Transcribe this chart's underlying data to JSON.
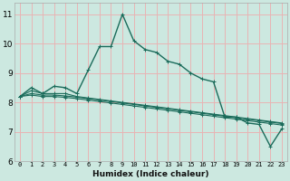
{
  "xlabel": "Humidex (Indice chaleur)",
  "bg_color": "#cce8e0",
  "grid_color": "#e8b4b4",
  "line_color": "#1a6b5a",
  "xlim": [
    -0.5,
    23.5
  ],
  "ylim": [
    6,
    11.4
  ],
  "yticks": [
    6,
    7,
    8,
    9,
    10,
    11
  ],
  "xticks": [
    0,
    1,
    2,
    3,
    4,
    5,
    6,
    7,
    8,
    9,
    10,
    11,
    12,
    13,
    14,
    15,
    16,
    17,
    18,
    19,
    20,
    21,
    22,
    23
  ],
  "series": [
    [
      8.2,
      8.5,
      8.3,
      8.55,
      8.5,
      8.3,
      9.1,
      9.9,
      9.9,
      11.0,
      10.1,
      9.8,
      9.7,
      9.4,
      9.3,
      9.0,
      8.8,
      8.7,
      7.5,
      7.5,
      7.3,
      7.25,
      6.5,
      7.1
    ],
    [
      8.2,
      8.4,
      8.3,
      8.3,
      8.3,
      8.2,
      8.15,
      8.1,
      8.05,
      8.0,
      7.95,
      7.9,
      7.85,
      7.8,
      7.75,
      7.7,
      7.65,
      7.6,
      7.55,
      7.5,
      7.45,
      7.4,
      7.35,
      7.3
    ],
    [
      8.2,
      8.3,
      8.25,
      8.25,
      8.22,
      8.18,
      8.13,
      8.08,
      8.03,
      7.98,
      7.93,
      7.88,
      7.83,
      7.78,
      7.73,
      7.68,
      7.63,
      7.58,
      7.53,
      7.48,
      7.43,
      7.38,
      7.33,
      7.28
    ],
    [
      8.2,
      8.25,
      8.2,
      8.2,
      8.17,
      8.13,
      8.08,
      8.03,
      7.98,
      7.93,
      7.88,
      7.83,
      7.78,
      7.73,
      7.68,
      7.63,
      7.58,
      7.53,
      7.48,
      7.43,
      7.38,
      7.33,
      7.28,
      7.23
    ]
  ],
  "xlabel_fontsize": 6.5,
  "xlabel_bold": true,
  "ytick_fontsize": 6.5,
  "xtick_fontsize": 5.0
}
